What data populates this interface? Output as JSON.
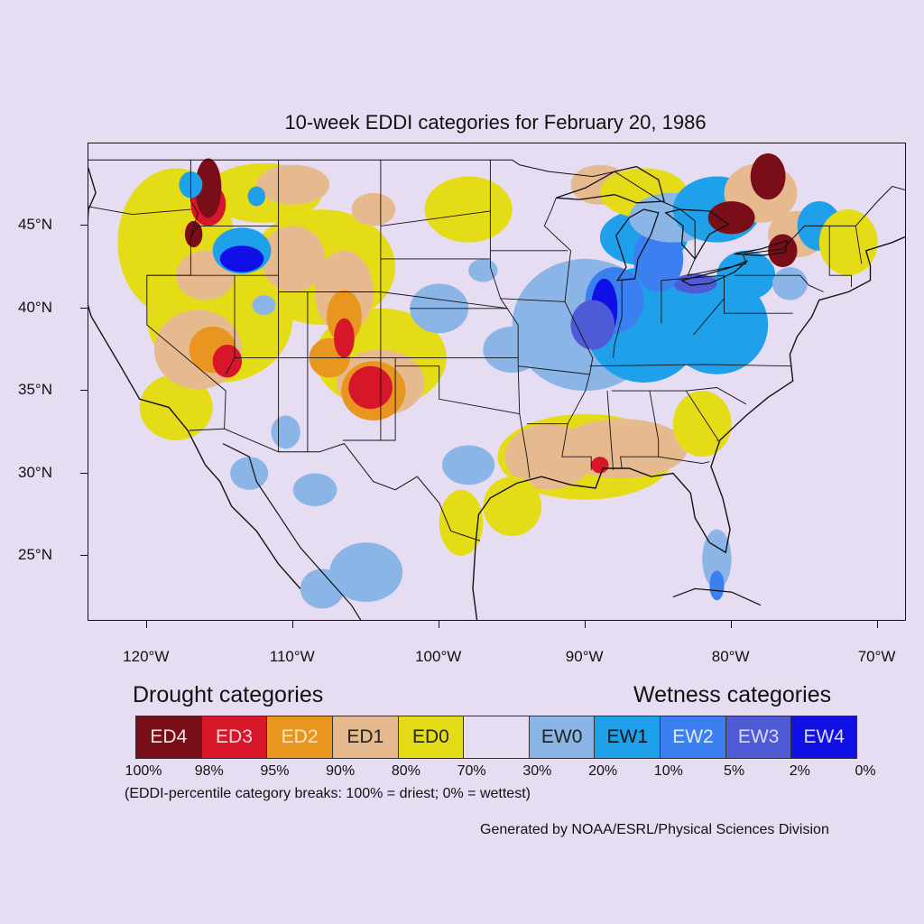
{
  "title": "10-week EDDI categories for February 20, 1986",
  "map": {
    "projection": "lat-lon",
    "lon_range": [
      -124,
      -68
    ],
    "lat_range": [
      21,
      50
    ],
    "y_ticks": [
      {
        "label": "45°N",
        "lat": 45
      },
      {
        "label": "40°N",
        "lat": 40
      },
      {
        "label": "35°N",
        "lat": 35
      },
      {
        "label": "30°N",
        "lat": 30
      },
      {
        "label": "25°N",
        "lat": 25
      }
    ],
    "x_ticks": [
      {
        "label": "120°W",
        "lon": -120
      },
      {
        "label": "110°W",
        "lon": -110
      },
      {
        "label": "100°W",
        "lon": -100
      },
      {
        "label": "90°W",
        "lon": -90
      },
      {
        "label": "80°W",
        "lon": -80
      },
      {
        "label": "70°W",
        "lon": -70
      }
    ]
  },
  "legend": {
    "drought_heading": "Drought categories",
    "wetness_heading": "Wetness categories",
    "categories": [
      {
        "label": "ED4",
        "color": "#7a0e18",
        "text_color": "#f3e3e6"
      },
      {
        "label": "ED3",
        "color": "#d8162a",
        "text_color": "#f6dcdc"
      },
      {
        "label": "ED2",
        "color": "#e8961f",
        "text_color": "#fbe6c4"
      },
      {
        "label": "ED1",
        "color": "#e6b98e",
        "text_color": "#222222"
      },
      {
        "label": "ED0",
        "color": "#e5dc18",
        "text_color": "#222222"
      },
      {
        "label": "",
        "color": "#e6ddf2",
        "text_color": "#222222"
      },
      {
        "label": "EW0",
        "color": "#8ab5e6",
        "text_color": "#222222"
      },
      {
        "label": "EW1",
        "color": "#1ea1ea",
        "text_color": "#111111"
      },
      {
        "label": "EW2",
        "color": "#3b7ff0",
        "text_color": "#e2ebfb"
      },
      {
        "label": "EW3",
        "color": "#4f5bd6",
        "text_color": "#d8dcf6"
      },
      {
        "label": "EW4",
        "color": "#0f0fe6",
        "text_color": "#dcdcfb"
      }
    ],
    "percentiles": [
      "100%",
      "98%",
      "95%",
      "90%",
      "80%",
      "70%",
      "30%",
      "20%",
      "10%",
      "5%",
      "2%",
      "0%"
    ],
    "note": "(EDDI-percentile category breaks: 100% = driest; 0% = wettest)"
  },
  "credit": "Generated by NOAA/ESRL/Physical Sciences Division",
  "regions": [
    {
      "name": "pacific-northwest-drought",
      "category": "ED4",
      "lon": -115.5,
      "lat": 46.5
    },
    {
      "name": "eastern-oregon-wet",
      "category": "EW4",
      "lon": -113.5,
      "lat": 43.0
    },
    {
      "name": "colorado-drought",
      "category": "ED3",
      "lon": -104.8,
      "lat": 35.3
    },
    {
      "name": "great-lakes-wet",
      "category": "EW4",
      "lon": -88.7,
      "lat": 40.0
    },
    {
      "name": "northeast-drought",
      "category": "ED4",
      "lon": -78.5,
      "lat": 46.5
    },
    {
      "name": "southeast-dry-band",
      "category": "ED1",
      "lon": -88.0,
      "lat": 30.5
    },
    {
      "name": "florida-wet",
      "category": "EW2",
      "lon": -81.0,
      "lat": 23.0
    }
  ]
}
